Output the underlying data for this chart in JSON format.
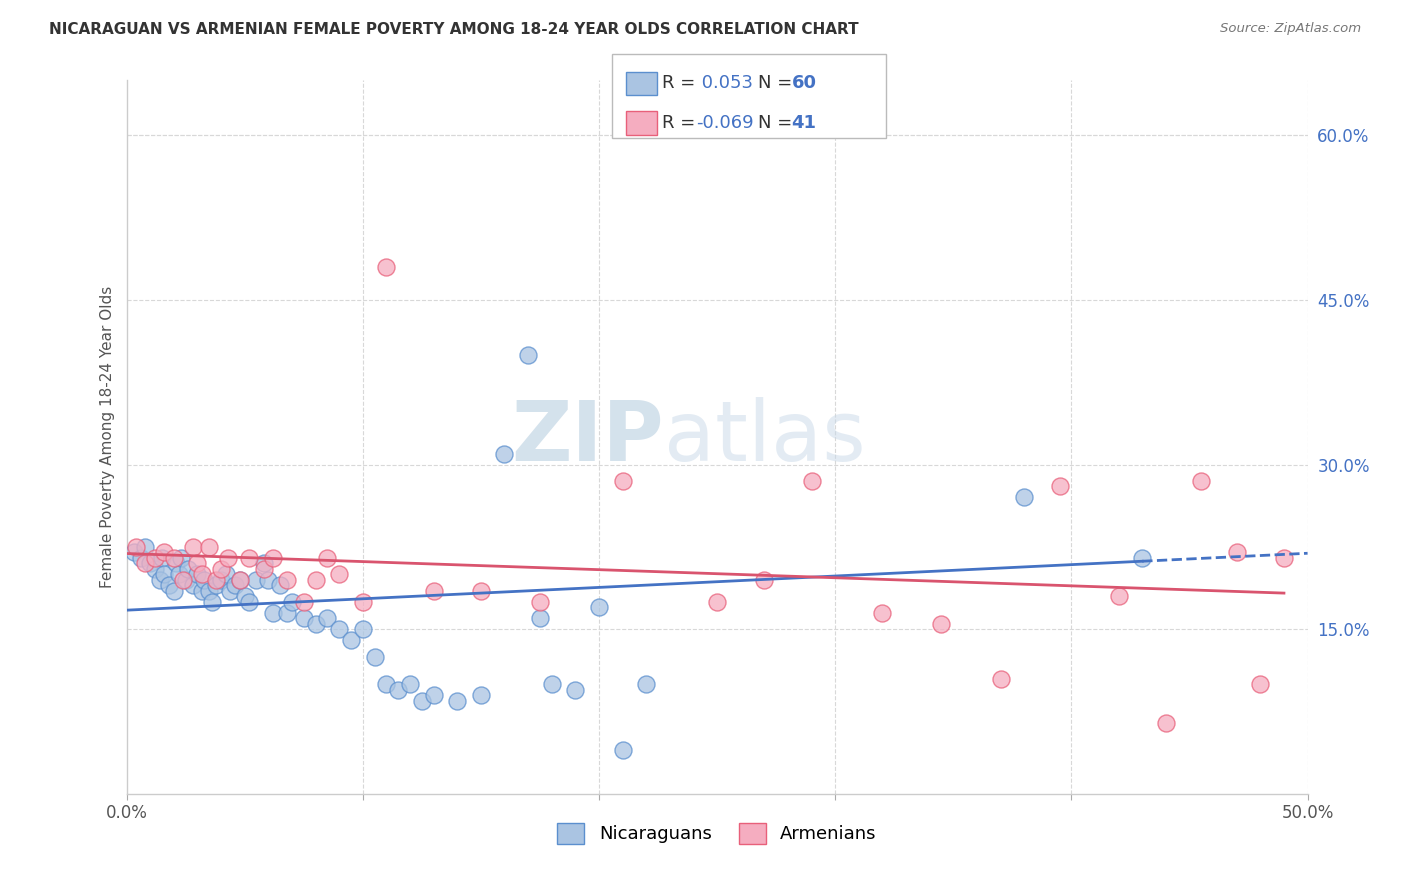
{
  "title": "NICARAGUAN VS ARMENIAN FEMALE POVERTY AMONG 18-24 YEAR OLDS CORRELATION CHART",
  "source": "Source: ZipAtlas.com",
  "ylabel": "Female Poverty Among 18-24 Year Olds",
  "xlim": [
    0.0,
    0.5
  ],
  "ylim": [
    0.0,
    0.65
  ],
  "xticks": [
    0.0,
    0.1,
    0.2,
    0.3,
    0.4,
    0.5
  ],
  "xticklabels": [
    "0.0%",
    "",
    "",
    "",
    "",
    "50.0%"
  ],
  "yticks_right": [
    0.15,
    0.3,
    0.45,
    0.6
  ],
  "ytick_right_labels": [
    "15.0%",
    "30.0%",
    "45.0%",
    "60.0%"
  ],
  "background_color": "#ffffff",
  "grid_color": "#d8d8d8",
  "nic_color": "#aac4e2",
  "arm_color": "#f5adc0",
  "nic_edge_color": "#5b8fce",
  "arm_edge_color": "#e8607a",
  "nic_line_color": "#4472c4",
  "arm_line_color": "#d9546e",
  "nic_R": 0.053,
  "nic_N": 60,
  "arm_R": -0.069,
  "arm_N": 41,
  "nic_x": [
    0.003,
    0.006,
    0.008,
    0.01,
    0.012,
    0.014,
    0.015,
    0.016,
    0.018,
    0.02,
    0.021,
    0.022,
    0.023,
    0.025,
    0.026,
    0.028,
    0.03,
    0.032,
    0.033,
    0.035,
    0.036,
    0.038,
    0.04,
    0.042,
    0.044,
    0.046,
    0.048,
    0.05,
    0.052,
    0.055,
    0.058,
    0.06,
    0.062,
    0.065,
    0.068,
    0.07,
    0.075,
    0.08,
    0.085,
    0.09,
    0.095,
    0.1,
    0.105,
    0.11,
    0.115,
    0.12,
    0.125,
    0.13,
    0.14,
    0.15,
    0.16,
    0.17,
    0.175,
    0.18,
    0.19,
    0.2,
    0.21,
    0.22,
    0.38,
    0.43
  ],
  "nic_y": [
    0.22,
    0.215,
    0.225,
    0.21,
    0.205,
    0.195,
    0.215,
    0.2,
    0.19,
    0.185,
    0.21,
    0.2,
    0.215,
    0.195,
    0.205,
    0.19,
    0.2,
    0.185,
    0.195,
    0.185,
    0.175,
    0.19,
    0.195,
    0.2,
    0.185,
    0.19,
    0.195,
    0.18,
    0.175,
    0.195,
    0.21,
    0.195,
    0.165,
    0.19,
    0.165,
    0.175,
    0.16,
    0.155,
    0.16,
    0.15,
    0.14,
    0.15,
    0.125,
    0.1,
    0.095,
    0.1,
    0.085,
    0.09,
    0.085,
    0.09,
    0.31,
    0.4,
    0.16,
    0.1,
    0.095,
    0.17,
    0.04,
    0.1,
    0.27,
    0.215
  ],
  "arm_x": [
    0.004,
    0.008,
    0.012,
    0.016,
    0.02,
    0.024,
    0.028,
    0.03,
    0.032,
    0.035,
    0.038,
    0.04,
    0.043,
    0.048,
    0.052,
    0.058,
    0.062,
    0.068,
    0.075,
    0.08,
    0.085,
    0.09,
    0.1,
    0.11,
    0.13,
    0.15,
    0.175,
    0.21,
    0.25,
    0.27,
    0.29,
    0.32,
    0.345,
    0.37,
    0.395,
    0.42,
    0.44,
    0.455,
    0.47,
    0.48,
    0.49
  ],
  "arm_y": [
    0.225,
    0.21,
    0.215,
    0.22,
    0.215,
    0.195,
    0.225,
    0.21,
    0.2,
    0.225,
    0.195,
    0.205,
    0.215,
    0.195,
    0.215,
    0.205,
    0.215,
    0.195,
    0.175,
    0.195,
    0.215,
    0.2,
    0.175,
    0.48,
    0.185,
    0.185,
    0.175,
    0.285,
    0.175,
    0.195,
    0.285,
    0.165,
    0.155,
    0.105,
    0.28,
    0.18,
    0.065,
    0.285,
    0.22,
    0.1,
    0.215
  ]
}
